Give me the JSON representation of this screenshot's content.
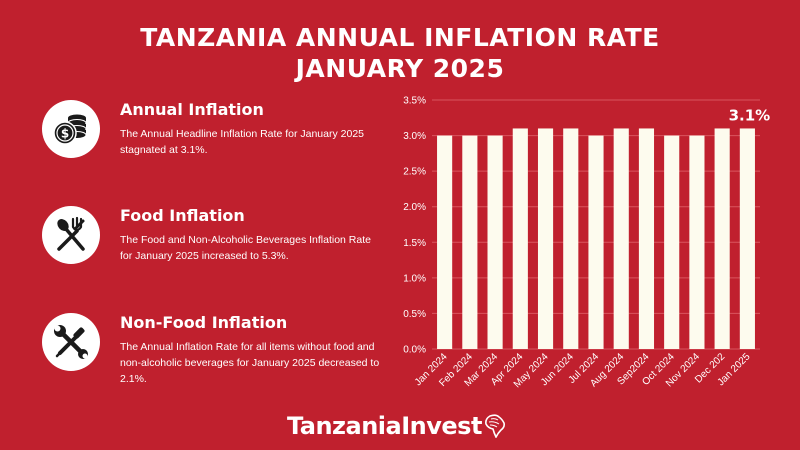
{
  "title": {
    "line1": "TANZANIA ANNUAL INFLATION RATE",
    "line2": "JANUARY 2025"
  },
  "info_items": [
    {
      "icon": "coins-dollar-icon",
      "heading": "Annual Inflation",
      "body": "The Annual Headline Inflation Rate for January 2025 stagnated at 3.1%."
    },
    {
      "icon": "spoon-fork-icon",
      "heading": "Food Inflation",
      "body": "The Food and Non-Alcoholic Beverages Inflation Rate for January 2025 increased to 5.3%."
    },
    {
      "icon": "wrench-screwdriver-icon",
      "heading": "Non-Food Inflation",
      "body": "The Annual Inflation Rate for all items without food and non-alcoholic beverages for January 2025 decreased to 2.1%."
    }
  ],
  "chart_data": {
    "type": "bar",
    "title": "",
    "xlabel": "",
    "ylabel": "",
    "categories": [
      "Jan 2024",
      "Feb 2024",
      "Mar 2024",
      "Apr 2024",
      "May 2024",
      "Jun 2024",
      "Jul 2024",
      "Aug 2024",
      "Sep2024",
      "Oct 2024",
      "Nov 2024",
      "Dec 202",
      "Jan 2025"
    ],
    "values": [
      3.0,
      3.0,
      3.0,
      3.1,
      3.1,
      3.1,
      3.0,
      3.1,
      3.1,
      3.0,
      3.0,
      3.1,
      3.1
    ],
    "ylim": [
      0,
      3.5
    ],
    "yticks": [
      "0.0%",
      "0.5%",
      "1.0%",
      "1.5%",
      "2.0%",
      "2.5%",
      "3.0%",
      "3.5%"
    ],
    "grid": true,
    "annotation": "3.1%",
    "bar_color": "#fdfbee",
    "grid_color": "#d9555f"
  },
  "logo": {
    "text": "TanzaniaInvest"
  },
  "colors": {
    "background": "#c0202e",
    "text": "#ffffff",
    "icon_fill": "#1a1a1a"
  }
}
